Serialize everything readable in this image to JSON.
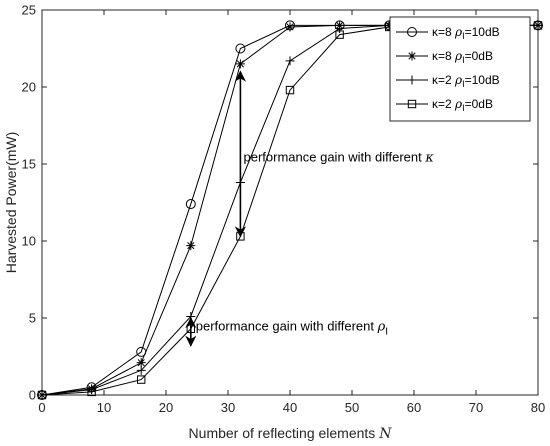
{
  "chart_data": {
    "type": "line",
    "title": "",
    "xlabel": "Number of reflecting elements",
    "xlabel_symbol": "N",
    "ylabel": "Harvested Power(mW)",
    "xlim": [
      0,
      80
    ],
    "ylim": [
      0,
      25
    ],
    "xticks": [
      0,
      10,
      20,
      30,
      40,
      50,
      60,
      70,
      80
    ],
    "yticks": [
      0,
      5,
      10,
      15,
      20,
      25
    ],
    "grid": false,
    "legend_position": "top-right",
    "x": [
      0,
      8,
      16,
      24,
      32,
      40,
      48,
      56,
      64,
      72,
      80
    ],
    "series": [
      {
        "key": "k8_10dB",
        "kappa_label": "κ=8",
        "rho_label": "ρ",
        "rho_sub": "I",
        "rho_value": "=10dB",
        "marker": "circle",
        "values": [
          0,
          0.5,
          2.8,
          12.4,
          22.5,
          24.0,
          24.0,
          24.0,
          24.0,
          24.0,
          24.0
        ]
      },
      {
        "key": "k8_0dB",
        "kappa_label": "κ=8",
        "rho_label": "ρ",
        "rho_sub": "I",
        "rho_value": "=0dB",
        "marker": "star",
        "values": [
          0,
          0.4,
          2.1,
          9.7,
          21.5,
          23.9,
          24.0,
          24.0,
          24.0,
          24.0,
          24.0
        ]
      },
      {
        "key": "k2_10dB",
        "kappa_label": "κ=2",
        "rho_label": "ρ",
        "rho_sub": "I",
        "rho_value": "=10dB",
        "marker": "plus",
        "values": [
          0,
          0.35,
          1.6,
          5.1,
          13.8,
          21.7,
          23.8,
          24.0,
          24.0,
          24.0,
          24.0
        ]
      },
      {
        "key": "k2_0dB",
        "kappa_label": "κ=2",
        "rho_label": "ρ",
        "rho_sub": "I",
        "rho_value": "=0dB",
        "marker": "square",
        "values": [
          0,
          0.2,
          1.0,
          4.3,
          10.3,
          19.8,
          23.4,
          23.9,
          24.0,
          24.0,
          24.0
        ]
      }
    ],
    "annotations": [
      {
        "key": "gain_kappa",
        "text": "performance gain with different",
        "symbol": "κ",
        "sub": "",
        "x": 32.5,
        "y": 15.5,
        "arrow": {
          "x": 32,
          "y1": 21.0,
          "y2": 10.3
        }
      },
      {
        "key": "gain_rho",
        "text": "performance gain with different",
        "symbol": "ρ",
        "sub": "I",
        "x": 24.8,
        "y": 4.5,
        "arrow": {
          "x": 24,
          "y1": 5.0,
          "y2": 3.2
        }
      }
    ]
  }
}
